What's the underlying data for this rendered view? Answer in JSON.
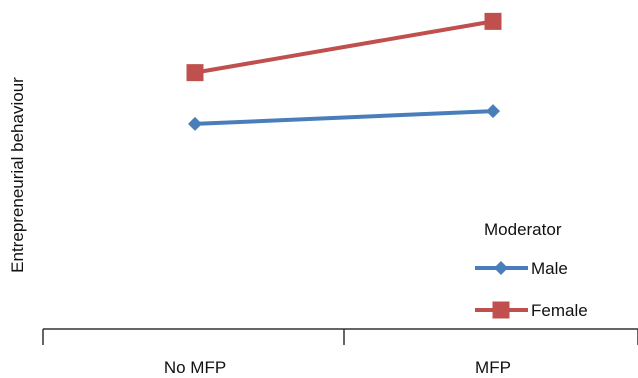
{
  "chart_data": {
    "type": "line",
    "categories": [
      "No MFP",
      "MFP"
    ],
    "series": [
      {
        "name": "Male",
        "values": [
          2.4,
          2.55
        ],
        "color": "#4a7ebb",
        "marker": "diamond"
      },
      {
        "name": "Female",
        "values": [
          3.0,
          3.6
        ],
        "color": "#c0504d",
        "marker": "square"
      }
    ],
    "ylabel": "Entrepreneurial behaviour",
    "xlabel": "",
    "ylim": [
      0,
      3.85
    ],
    "legend": {
      "title": "Moderator",
      "position": "bottom-right"
    },
    "grid": false,
    "y_axis_line": false,
    "x_tick_marks": true
  }
}
